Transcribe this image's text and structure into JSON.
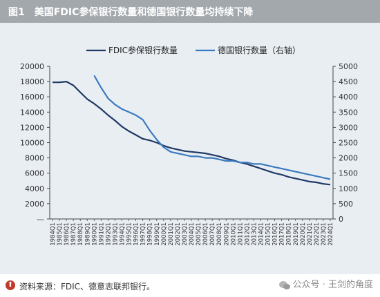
{
  "header": {
    "title": "图1　美国FDIC参保银行数量和德国银行数量均持续下降"
  },
  "footer": {
    "source": "资料来源：FDIC、德意志联邦银行。",
    "watermark": "公众号 · 王剑的角度"
  },
  "colors": {
    "fdic": "#1f3864",
    "germany": "#3a7abf",
    "title_bg": "#a3a8ad",
    "plot_bg": "#e9eef3"
  },
  "chart_data": {
    "type": "line",
    "title": "图1　美国FDIC参保银行数量和德国银行数量均持续下降",
    "x": [
      "1984Q1",
      "1985Q1",
      "1986Q1",
      "1987Q1",
      "1988Q1",
      "1989Q1",
      "1990Q1",
      "1991Q1",
      "1992Q1",
      "1993Q1",
      "1994Q1",
      "1995Q1",
      "1996Q1",
      "1997Q1",
      "1998Q1",
      "1999Q1",
      "2000Q1",
      "2001Q1",
      "2002Q1",
      "2003Q1",
      "2004Q1",
      "2005Q1",
      "2006Q1",
      "2007Q1",
      "2008Q1",
      "2009Q1",
      "2010Q1",
      "2011Q1",
      "2012Q1",
      "2013Q1",
      "2014Q1",
      "2015Q1",
      "2016Q1",
      "2017Q1",
      "2018Q1",
      "2019Q1",
      "2020Q1",
      "2021Q1",
      "2022Q1",
      "2023Q1",
      "2024Q1"
    ],
    "y_left": {
      "min": 0,
      "max": 20000,
      "ticks": [
        "20000",
        "18000",
        "16000",
        "14000",
        "12000",
        "10000",
        "8000",
        "6000",
        "4000",
        "2000",
        "—"
      ]
    },
    "y_right": {
      "min": 0,
      "max": 5000,
      "ticks": [
        "5000",
        "4500",
        "4000",
        "3500",
        "3000",
        "2500",
        "2000",
        "1500",
        "1000",
        "500",
        "0"
      ]
    },
    "legend_position": "top",
    "series": [
      {
        "name": "FDIC参保银行数量",
        "axis": "left",
        "values": [
          17900,
          17900,
          18000,
          17500,
          16600,
          15700,
          15100,
          14400,
          13600,
          12900,
          12100,
          11500,
          11000,
          10500,
          10300,
          10000,
          9600,
          9300,
          9100,
          8900,
          8800,
          8700,
          8600,
          8400,
          8200,
          7900,
          7700,
          7400,
          7200,
          6900,
          6600,
          6300,
          6000,
          5800,
          5500,
          5300,
          5100,
          4900,
          4800,
          4600,
          4500
        ]
      },
      {
        "name": "德国银行数量（右轴）",
        "axis": "right",
        "values": [
          null,
          null,
          null,
          null,
          null,
          null,
          4700,
          4300,
          3950,
          3750,
          3600,
          3500,
          3400,
          3250,
          2900,
          2600,
          2350,
          2200,
          2150,
          2100,
          2050,
          2050,
          2000,
          2000,
          1950,
          1900,
          1900,
          1850,
          1850,
          1800,
          1800,
          1750,
          1700,
          1650,
          1600,
          1550,
          1500,
          1450,
          1400,
          1350,
          1300
        ]
      }
    ]
  }
}
